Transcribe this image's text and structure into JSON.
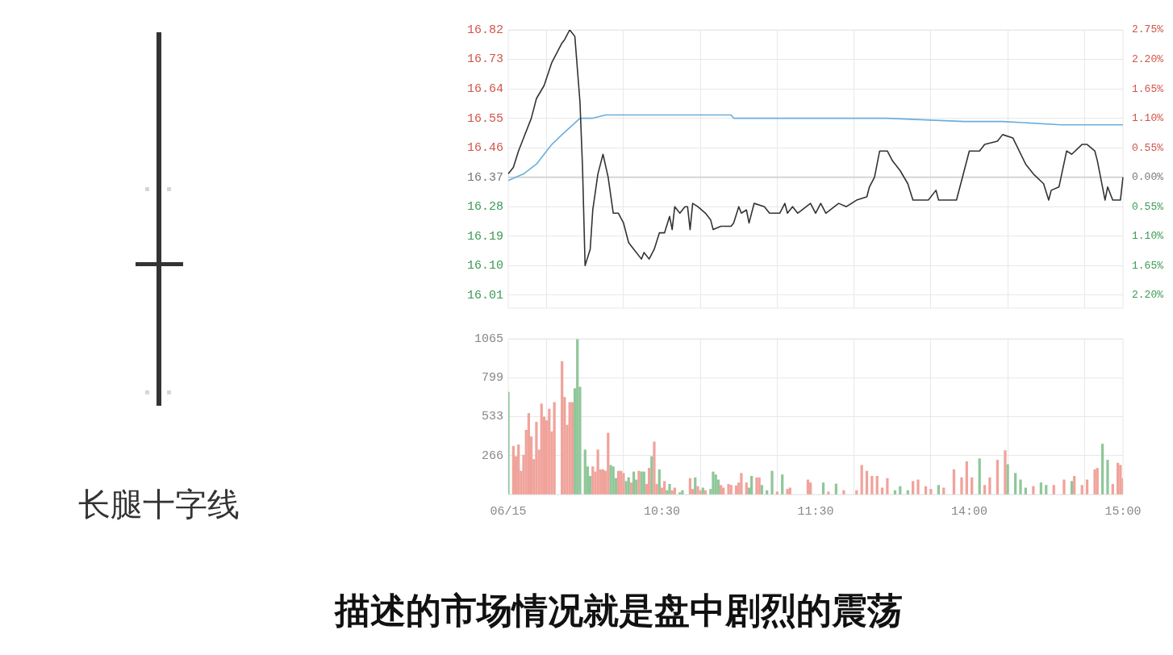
{
  "chart_data": [
    {
      "type": "line",
      "tick_labels": "y",
      "grid": true,
      "annotations": [
        "长腿十字线"
      ],
      "categories": [
        null,
        null,
        null,
        null,
        null,
        null,
        null,
        null,
        null,
        null,
        null,
        null,
        null,
        null,
        null,
        null,
        null,
        null,
        null,
        null,
        null,
        null,
        null,
        null,
        null,
        null,
        null,
        null,
        null,
        null,
        null,
        null,
        null,
        null,
        null,
        null,
        null,
        null,
        null,
        null,
        null,
        null,
        null,
        null,
        null,
        null,
        null,
        null,
        null,
        null,
        null,
        null,
        null,
        null,
        null,
        null,
        null,
        null,
        null,
        null,
        null,
        null,
        null,
        null,
        null,
        null,
        null,
        null,
        null,
        null,
        null,
        null,
        null,
        null,
        null,
        null,
        null,
        null,
        null,
        null,
        null,
        null,
        null,
        null,
        null,
        null,
        null,
        null,
        null,
        null,
        null,
        null,
        null,
        null,
        null,
        null,
        null,
        null,
        null,
        null,
        null,
        null,
        null,
        null,
        null,
        null,
        null,
        null,
        null,
        null,
        null,
        null,
        null,
        null,
        null,
        null,
        null,
        null,
        null,
        null,
        null,
        null,
        null,
        null,
        null,
        null,
        null,
        null,
        null,
        null,
        null,
        null,
        null,
        null,
        null,
        null,
        null,
        null,
        null,
        null,
        null,
        null,
        null,
        null,
        null,
        null,
        null,
        null,
        null,
        null,
        null,
        null,
        null,
        null,
        null,
        null,
        null,
        null,
        null,
        null,
        null,
        null,
        null,
        null,
        null,
        null,
        null,
        null,
        null,
        null,
        null,
        null,
        null,
        null,
        null,
        null,
        null,
        null,
        null,
        null,
        null,
        null,
        null,
        null,
        null,
        null,
        null,
        null,
        null,
        null,
        null,
        null,
        null,
        null,
        null,
        null,
        null,
        null,
        null,
        null,
        null,
        null,
        null,
        null,
        null,
        null,
        null,
        null,
        null,
        null,
        null,
        null,
        null,
        null,
        null,
        null,
        null,
        null,
        null,
        null,
        null,
        null,
        null,
        null,
        null,
        null,
        null,
        null,
        null,
        null,
        null,
        null,
        null,
        null,
        null,
        null,
        null,
        null,
        null,
        null,
        null
      ],
      "ylim": [
        15.97,
        16.82
      ],
      "yticks": [
        {
          "value": 16.01,
          "label": "16.01"
        },
        {
          "value": 16.1,
          "label": "16.10"
        },
        {
          "value": 16.19,
          "label": "16.19"
        },
        {
          "value": 16.28,
          "label": "16.28"
        },
        {
          "value": 16.37,
          "label": "16.37"
        },
        {
          "value": 16.46,
          "label": "16.46"
        },
        {
          "value": 16.55,
          "label": "16.55"
        },
        {
          "value": 16.64,
          "label": "16.64"
        },
        {
          "value": 16.73,
          "label": "16.73"
        },
        {
          "value": 16.82,
          "label": "16.82"
        }
      ],
      "y2lim": [
        -2.44,
        2.75
      ],
      "y2ticks": [
        {
          "value": -2.2,
          "label": "2.20%"
        },
        {
          "value": -1.65,
          "label": "1.65%"
        },
        {
          "value": -1.1,
          "label": "1.10%"
        },
        {
          "value": -0.55,
          "label": "0.55%"
        },
        {
          "value": 0,
          "label": "0.00%"
        },
        {
          "value": 0.55,
          "label": "0.55%"
        },
        {
          "value": 1.1,
          "label": "1.10%"
        },
        {
          "value": 1.65,
          "label": "1.65%"
        },
        {
          "value": 2.2,
          "label": "2.20%"
        },
        {
          "value": 2.75,
          "label": "2.75%"
        }
      ],
      "ref_lines": [
        {
          "axis": "y",
          "value": 16.37,
          "color": "#d4d4d4"
        }
      ],
      "series": [
        {
          "color": "#333333",
          "values": [
            16.38,
            null,
            16.4,
            null,
            16.45,
            null,
            16.49,
            null,
            null,
            16.55,
            null,
            16.61,
            null,
            null,
            16.65,
            null,
            null,
            16.72,
            null,
            null,
            null,
            16.78,
            16.79,
            null,
            16.82,
            null,
            16.8,
            null,
            16.6,
            16.4,
            16.1,
            null,
            16.15,
            16.27,
            null,
            16.38,
            null,
            16.44,
            null,
            16.37,
            null,
            16.26,
            null,
            16.26,
            null,
            16.23,
            null,
            16.17,
            null,
            16.15,
            null,
            null,
            16.12,
            16.14,
            null,
            16.12,
            null,
            16.15,
            null,
            16.2,
            null,
            16.2,
            null,
            16.25,
            16.21,
            16.28,
            null,
            16.26,
            null,
            16.28,
            16.28,
            16.21,
            16.29,
            null,
            16.28,
            null,
            null,
            16.26,
            null,
            16.24,
            16.21,
            null,
            null,
            16.22,
            null,
            null,
            null,
            16.22,
            16.23,
            null,
            16.28,
            16.26,
            null,
            16.27,
            16.23,
            null,
            16.29,
            null,
            null,
            null,
            16.28,
            null,
            16.26,
            null,
            null,
            null,
            16.26,
            null,
            16.29,
            16.26,
            null,
            16.28,
            null,
            16.26,
            null,
            null,
            null,
            null,
            16.29,
            null,
            16.26,
            null,
            16.29,
            null,
            16.26,
            null,
            null,
            null,
            null,
            16.29,
            null,
            null,
            16.28,
            null,
            null,
            null,
            16.3,
            null,
            null,
            null,
            16.31,
            16.34,
            null,
            16.37,
            null,
            16.45,
            null,
            null,
            16.45,
            null,
            16.42,
            null,
            null,
            16.39,
            null,
            null,
            16.35,
            null,
            16.3,
            null,
            null,
            null,
            null,
            null,
            16.3,
            null,
            null,
            16.33,
            16.3,
            null,
            null,
            null,
            null,
            null,
            null,
            16.3,
            null,
            16.36,
            null,
            null,
            16.45,
            null,
            null,
            null,
            16.45,
            null,
            16.47,
            null,
            null,
            null,
            null,
            16.48,
            null,
            16.5,
            null,
            null,
            null,
            16.49,
            null,
            null,
            null,
            null,
            16.41,
            null,
            null,
            16.38,
            null,
            null,
            null,
            16.35,
            null,
            16.3,
            16.33,
            null,
            null,
            16.34,
            null,
            null,
            16.45,
            null,
            16.44,
            null,
            null,
            null,
            16.47,
            null,
            16.47,
            null,
            null,
            16.45,
            16.42,
            null,
            16.34,
            16.3,
            16.34,
            null,
            16.3,
            null,
            null,
            16.3,
            16.37
          ]
        },
        {
          "color": "#6aaedc",
          "values": [
            16.36,
            null,
            null,
            null,
            null,
            null,
            16.38,
            null,
            null,
            null,
            null,
            16.41,
            null,
            null,
            null,
            null,
            null,
            16.47,
            null,
            null,
            null,
            16.5,
            null,
            null,
            null,
            null,
            null,
            null,
            16.55,
            null,
            null,
            null,
            null,
            16.55,
            null,
            null,
            null,
            null,
            16.56,
            null,
            null,
            null,
            null,
            null,
            null,
            null,
            null,
            null,
            null,
            null,
            null,
            null,
            null,
            null,
            null,
            null,
            null,
            null,
            null,
            null,
            null,
            null,
            null,
            null,
            null,
            null,
            null,
            null,
            null,
            null,
            null,
            null,
            null,
            null,
            null,
            null,
            null,
            null,
            null,
            null,
            null,
            null,
            null,
            null,
            null,
            null,
            null,
            16.56,
            16.55,
            null,
            null,
            null,
            null,
            null,
            null,
            null,
            null,
            null,
            null,
            null,
            null,
            null,
            null,
            null,
            null,
            null,
            null,
            null,
            null,
            null,
            null,
            null,
            null,
            null,
            null,
            null,
            null,
            null,
            null,
            null,
            null,
            16.55,
            null,
            null,
            null,
            null,
            null,
            null,
            null,
            null,
            null,
            null,
            null,
            null,
            null,
            null,
            null,
            null,
            null,
            null,
            null,
            null,
            null,
            null,
            null,
            null,
            null,
            null,
            16.55,
            null,
            null,
            null,
            null,
            null,
            null,
            null,
            null,
            null,
            null,
            null,
            null,
            null,
            null,
            null,
            null,
            null,
            null,
            null,
            null,
            null,
            null,
            null,
            null,
            null,
            null,
            null,
            null,
            null,
            16.54,
            null,
            null,
            null,
            null,
            null,
            null,
            null,
            null,
            null,
            null,
            null,
            null,
            null,
            null,
            16.54,
            null,
            null,
            null,
            null,
            null,
            null,
            null,
            null,
            null,
            null,
            null,
            null,
            null,
            null,
            null,
            null,
            null,
            null,
            null,
            null,
            null,
            null,
            16.53,
            null,
            null,
            null,
            null,
            null,
            null,
            null,
            null,
            null,
            null,
            null,
            null,
            null,
            null,
            null,
            null,
            null,
            null,
            null,
            null,
            null,
            null,
            null,
            16.53
          ]
        }
      ]
    },
    {
      "type": "bar",
      "grid": true,
      "categories": [
        "06/15",
        null,
        null,
        null,
        null,
        null,
        null,
        null,
        null,
        null,
        null,
        null,
        null,
        null,
        null,
        null,
        null,
        null,
        null,
        null,
        null,
        null,
        null,
        null,
        null,
        null,
        null,
        null,
        null,
        null,
        null,
        null,
        null,
        null,
        null,
        null,
        null,
        null,
        null,
        null,
        null,
        null,
        null,
        null,
        null,
        null,
        null,
        null,
        null,
        null,
        null,
        null,
        null,
        null,
        null,
        null,
        null,
        null,
        null,
        null,
        "10:30",
        null,
        null,
        null,
        null,
        null,
        null,
        null,
        null,
        null,
        null,
        null,
        null,
        null,
        null,
        null,
        null,
        null,
        null,
        null,
        null,
        null,
        null,
        null,
        null,
        null,
        null,
        null,
        null,
        null,
        null,
        null,
        null,
        null,
        null,
        null,
        null,
        null,
        null,
        null,
        null,
        null,
        null,
        null,
        null,
        null,
        null,
        null,
        null,
        null,
        null,
        null,
        null,
        null,
        null,
        null,
        null,
        null,
        null,
        null,
        "11:30",
        null,
        null,
        null,
        null,
        null,
        null,
        null,
        null,
        null,
        null,
        null,
        null,
        null,
        null,
        null,
        null,
        null,
        null,
        null,
        null,
        null,
        null,
        null,
        null,
        null,
        null,
        null,
        null,
        null,
        null,
        null,
        null,
        null,
        null,
        null,
        null,
        null,
        null,
        null,
        null,
        null,
        null,
        null,
        null,
        null,
        null,
        null,
        null,
        null,
        null,
        null,
        null,
        null,
        null,
        null,
        null,
        null,
        null,
        null,
        "14:00",
        null,
        null,
        null,
        null,
        null,
        null,
        null,
        null,
        null,
        null,
        null,
        null,
        null,
        null,
        null,
        null,
        null,
        null,
        null,
        null,
        null,
        null,
        null,
        null,
        null,
        null,
        null,
        null,
        null,
        null,
        null,
        null,
        null,
        null,
        null,
        null,
        null,
        null,
        null,
        null,
        null,
        null,
        null,
        null,
        null,
        null,
        null,
        null,
        null,
        null,
        null,
        null,
        null,
        null,
        null,
        null,
        null,
        null,
        null,
        "15:00"
      ],
      "ylim": [
        0,
        1065
      ],
      "yticks": [
        {
          "value": 0,
          "label": null
        },
        266,
        533,
        799,
        1065
      ],
      "series": [
        {
          "color": "#f0a39b",
          "values": [
            null,
            null,
            330,
            260,
            340,
            160,
            270,
            440,
            555,
            395,
            240,
            495,
            305,
            620,
            530,
            505,
            585,
            430,
            630,
            null,
            null,
            910,
            665,
            475,
            630,
            630,
            null,
            null,
            null,
            null,
            null,
            null,
            null,
            190,
            155,
            305,
            170,
            170,
            160,
            420,
            null,
            null,
            null,
            160,
            160,
            145,
            null,
            null,
            80,
            null,
            null,
            160,
            null,
            null,
            70,
            180,
            null,
            360,
            70,
            null,
            45,
            90,
            null,
            null,
            27,
            45,
            null,
            null,
            null,
            null,
            null,
            110,
            36,
            null,
            55,
            27,
            null,
            27,
            null,
            null,
            null,
            null,
            null,
            63,
            45,
            null,
            70,
            63,
            null,
            60,
            80,
            145,
            null,
            80,
            null,
            null,
            null,
            115,
            115,
            null,
            null,
            null,
            null,
            null,
            null,
            18,
            null,
            null,
            null,
            36,
            45,
            null,
            null,
            null,
            null,
            null,
            null,
            100,
            80,
            null,
            null,
            null,
            null,
            null,
            null,
            18,
            null,
            null,
            null,
            null,
            null,
            27,
            null,
            null,
            null,
            null,
            27,
            null,
            200,
            null,
            160,
            null,
            125,
            null,
            125,
            null,
            45,
            null,
            110,
            null,
            null,
            null,
            null,
            null,
            null,
            null,
            null,
            null,
            90,
            null,
            100,
            null,
            null,
            55,
            null,
            36,
            null,
            null,
            null,
            null,
            45,
            null,
            null,
            null,
            170,
            null,
            null,
            115,
            null,
            225,
            null,
            115,
            null,
            null,
            null,
            null,
            63,
            null,
            115,
            null,
            null,
            235,
            null,
            null,
            300,
            null,
            null,
            null,
            null,
            null,
            null,
            null,
            null,
            null,
            null,
            55,
            null,
            null,
            null,
            null,
            null,
            null,
            null,
            63,
            null,
            null,
            null,
            100,
            null,
            null,
            null,
            125,
            null,
            null,
            63,
            null,
            100,
            null,
            null,
            170,
            180,
            null,
            null,
            null,
            null,
            null,
            70,
            null,
            215,
            200,
            110
          ]
        },
        {
          "color": "#8fc79a",
          "values": [
            700,
            null,
            null,
            null,
            null,
            null,
            null,
            null,
            null,
            null,
            null,
            null,
            null,
            null,
            null,
            null,
            null,
            null,
            null,
            null,
            null,
            null,
            null,
            null,
            null,
            null,
            725,
            1060,
            735,
            null,
            305,
            190,
            125,
            null,
            null,
            null,
            null,
            null,
            null,
            null,
            200,
            190,
            110,
            null,
            null,
            null,
            90,
            115,
            null,
            155,
            100,
            null,
            155,
            155,
            null,
            null,
            260,
            null,
            null,
            170,
            null,
            null,
            27,
            70,
            null,
            null,
            null,
            13,
            27,
            null,
            null,
            null,
            null,
            115,
            null,
            null,
            45,
            null,
            null,
            36,
            155,
            135,
            100,
            null,
            null,
            null,
            null,
            null,
            null,
            null,
            null,
            null,
            null,
            null,
            45,
            125,
            null,
            null,
            null,
            63,
            null,
            27,
            null,
            160,
            null,
            null,
            null,
            135,
            null,
            null,
            null,
            null,
            null,
            null,
            null,
            null,
            null,
            null,
            null,
            null,
            null,
            null,
            null,
            80,
            null,
            null,
            null,
            null,
            72,
            null,
            null,
            null,
            null,
            null,
            null,
            null,
            null,
            null,
            null,
            null,
            null,
            null,
            null,
            null,
            null,
            null,
            null,
            null,
            null,
            null,
            null,
            27,
            null,
            55,
            null,
            null,
            27,
            null,
            null,
            null,
            null,
            null,
            null,
            null,
            null,
            null,
            null,
            null,
            63,
            null,
            null,
            null,
            null,
            null,
            null,
            null,
            null,
            null,
            null,
            null,
            null,
            null,
            null,
            null,
            245,
            null,
            null,
            null,
            null,
            null,
            null,
            null,
            null,
            null,
            null,
            205,
            null,
            null,
            145,
            null,
            100,
            null,
            45,
            null,
            null,
            null,
            null,
            null,
            80,
            null,
            63,
            null,
            null,
            null,
            null,
            null,
            null,
            null,
            null,
            null,
            90,
            null,
            null,
            null,
            null,
            null,
            null,
            null,
            null,
            null,
            null,
            null,
            345,
            null,
            235,
            null,
            null,
            null,
            null,
            null,
            null
          ]
        }
      ],
      "annotations": [
        "描述的市场情况就是盘中剧烈的震荡"
      ]
    }
  ]
}
